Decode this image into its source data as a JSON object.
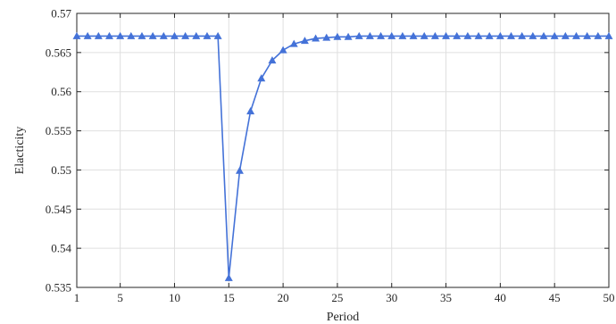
{
  "chart_data": {
    "type": "line",
    "title": "",
    "xlabel": "Period",
    "ylabel": "Elacticity",
    "xlim": [
      1,
      50
    ],
    "ylim": [
      0.535,
      0.57
    ],
    "x_ticks": [
      1,
      5,
      10,
      15,
      20,
      25,
      30,
      35,
      40,
      45,
      50
    ],
    "x_tick_labels": [
      "1",
      "5",
      "10",
      "15",
      "20",
      "25",
      "30",
      "35",
      "40",
      "45",
      "50"
    ],
    "y_ticks": [
      0.535,
      0.54,
      0.545,
      0.55,
      0.555,
      0.56,
      0.565,
      0.57
    ],
    "y_tick_labels": [
      "0.535",
      "0.54",
      "0.545",
      "0.55",
      "0.555",
      "0.56",
      "0.565",
      "0.57"
    ],
    "grid": true,
    "legend": "none",
    "marker": "triangle",
    "line_color": "#4472d8",
    "series": [
      {
        "x": [
          1,
          2,
          3,
          4,
          5,
          6,
          7,
          8,
          9,
          10,
          11,
          12,
          13,
          14,
          15,
          16,
          17,
          18,
          19,
          20,
          21,
          22,
          23,
          24,
          25,
          26,
          27,
          28,
          29,
          30,
          31,
          32,
          33,
          34,
          35,
          36,
          37,
          38,
          39,
          40,
          41,
          42,
          43,
          44,
          45,
          46,
          47,
          48,
          49,
          50
        ],
        "values": [
          0.5671,
          0.5671,
          0.5671,
          0.5671,
          0.5671,
          0.5671,
          0.5671,
          0.5671,
          0.5671,
          0.5671,
          0.5671,
          0.5671,
          0.5671,
          0.5671,
          0.5362,
          0.5499,
          0.5575,
          0.5617,
          0.564,
          0.5653,
          0.5661,
          0.5665,
          0.5668,
          0.5669,
          0.567,
          0.567,
          0.5671,
          0.5671,
          0.5671,
          0.5671,
          0.5671,
          0.5671,
          0.5671,
          0.5671,
          0.5671,
          0.5671,
          0.5671,
          0.5671,
          0.5671,
          0.5671,
          0.5671,
          0.5671,
          0.5671,
          0.5671,
          0.5671,
          0.5671,
          0.5671,
          0.5671,
          0.5671,
          0.5671
        ]
      }
    ]
  }
}
